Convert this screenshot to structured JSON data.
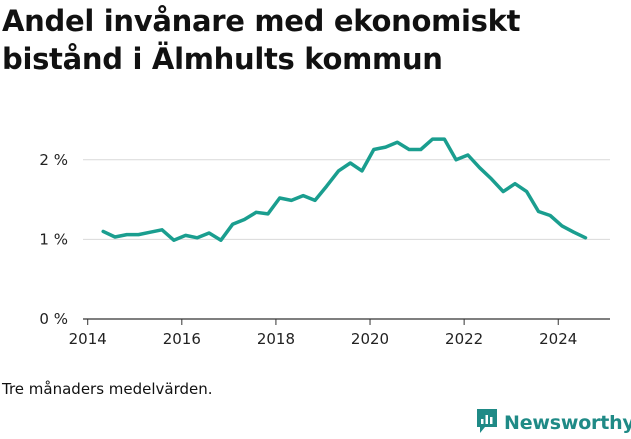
{
  "title": "Andel invånare med ekonomiskt bistånd i Älmhults kommun",
  "note": "Tre månaders medelvärden.",
  "brand": {
    "name": "Newsworthy",
    "icon": "newsworthy-logo-icon",
    "color": "#1f8a86"
  },
  "colors": {
    "line": "#1a9e8f",
    "grid": "#d9d9d9",
    "axis": "#333333"
  },
  "chart_data": {
    "type": "line",
    "title": "Andel invånare med ekonomiskt bistånd i Älmhults kommun",
    "xlabel": "",
    "ylabel": "",
    "xlim": [
      2013.9,
      2025.1
    ],
    "ylim": [
      0,
      2.5
    ],
    "x_ticks": [
      2014,
      2016,
      2018,
      2020,
      2022,
      2024
    ],
    "x_tick_labels": [
      "2014",
      "2016",
      "2018",
      "2020",
      "2022",
      "2024"
    ],
    "y_ticks": [
      0,
      1,
      2
    ],
    "y_tick_labels": [
      "0 %",
      "1 %",
      "2 %"
    ],
    "grid": true,
    "series": [
      {
        "x": [
          2014.33,
          2014.58,
          2014.83,
          2015.08,
          2015.33,
          2015.58,
          2015.83,
          2016.08,
          2016.33,
          2016.58,
          2016.83,
          2017.08,
          2017.33,
          2017.58,
          2017.83,
          2018.08,
          2018.33,
          2018.58,
          2018.83,
          2019.08,
          2019.33,
          2019.58,
          2019.83,
          2020.08,
          2020.33,
          2020.58,
          2020.83,
          2021.08,
          2021.33,
          2021.58,
          2021.83,
          2022.08,
          2022.33,
          2022.58,
          2022.83,
          2023.08,
          2023.33,
          2023.58,
          2023.83,
          2024.08,
          2024.33,
          2024.58
        ],
        "y": [
          1.1,
          1.03,
          1.06,
          1.06,
          1.09,
          1.12,
          0.99,
          1.05,
          1.02,
          1.08,
          0.99,
          1.19,
          1.25,
          1.34,
          1.32,
          1.52,
          1.49,
          1.55,
          1.49,
          1.67,
          1.86,
          1.96,
          1.86,
          2.13,
          2.16,
          2.22,
          2.13,
          2.13,
          2.26,
          2.26,
          2.0,
          2.06,
          1.9,
          1.76,
          1.6,
          1.7,
          1.6,
          1.35,
          1.3,
          1.17,
          1.09,
          1.02
        ]
      }
    ]
  }
}
